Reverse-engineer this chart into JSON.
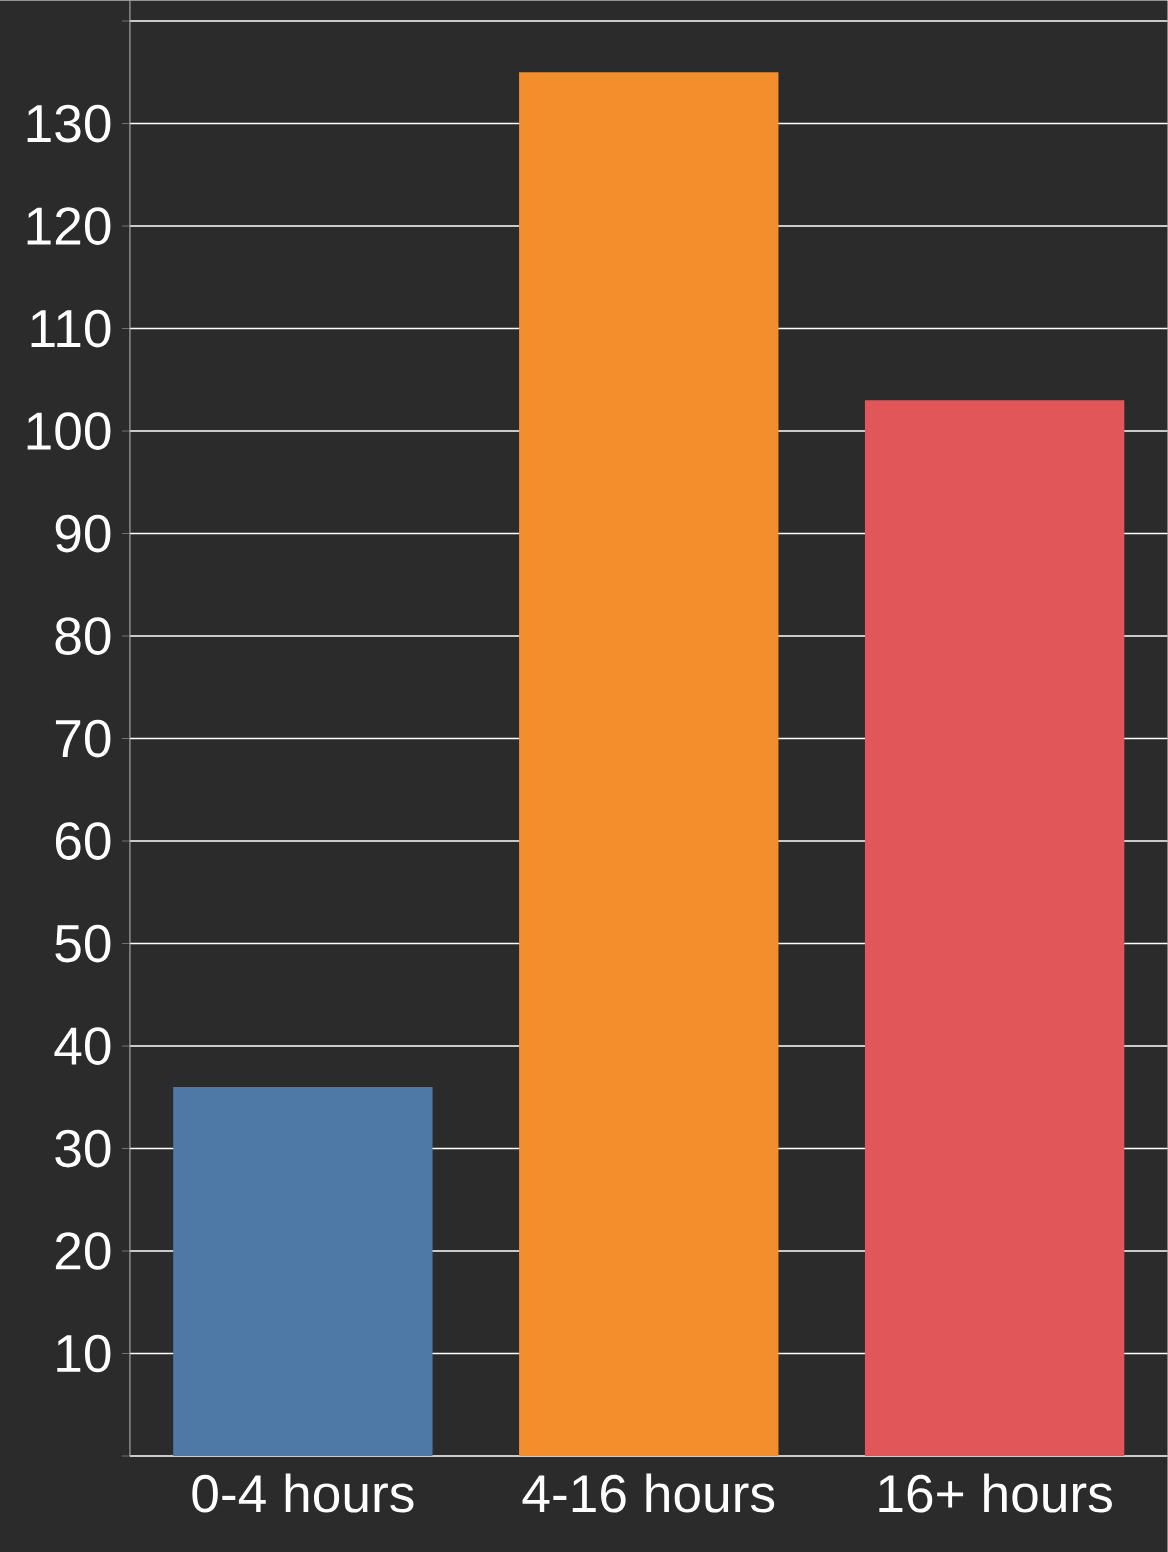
{
  "chart_data": {
    "type": "bar",
    "categories": [
      "0-4 hours",
      "4-16 hours",
      "16+ hours"
    ],
    "values": [
      36,
      135,
      103
    ],
    "colors": [
      "#4e79a7",
      "#f28e2b",
      "#e15759"
    ],
    "ylim": [
      0,
      142
    ],
    "yticks": [
      {
        "value": 0,
        "label": null
      },
      10,
      20,
      30,
      40,
      50,
      60,
      70,
      80,
      90,
      100,
      110,
      120,
      130,
      {
        "value": 140,
        "label": null
      }
    ],
    "grid": "y"
  }
}
